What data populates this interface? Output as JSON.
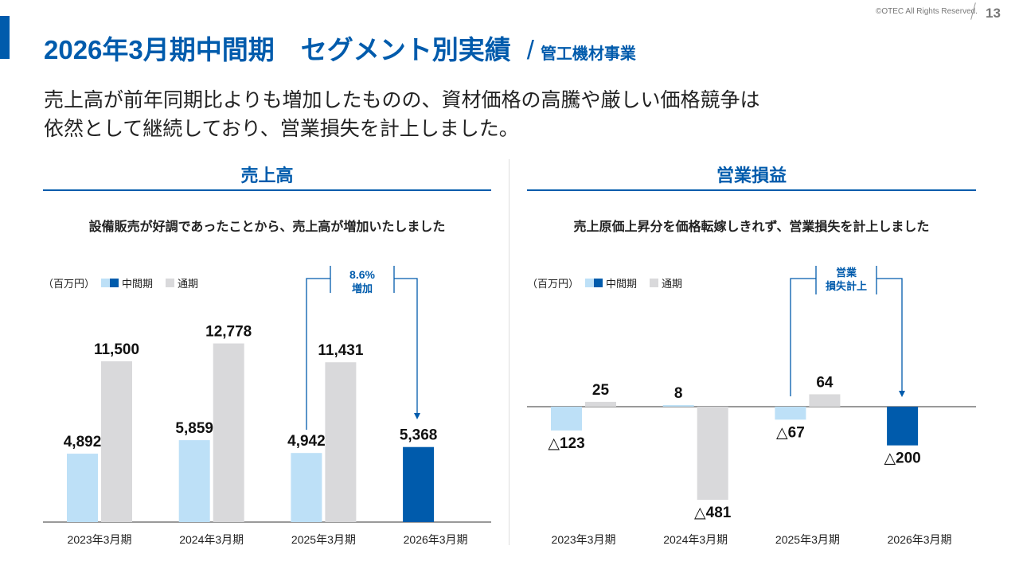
{
  "header": {
    "title": "2026年3月期中間期　セグメント別実績",
    "separator": "/",
    "subtitle": "管工機材事業",
    "copyright": "©OTEC All Rights Reserved.",
    "page_number": "13"
  },
  "lead": [
    "売上高が前年同期比よりも増加したものの、資材価格の高騰や厳しい価格競争は",
    "依然として継続しており、営業損失を計上しました。"
  ],
  "colors": {
    "accent": "#005bac",
    "interim": "#bde0f7",
    "interim_current": "#005bac",
    "full_year": "#d9d9db"
  },
  "legend": {
    "unit": "（百万円）",
    "interim": "中間期",
    "full_year": "通期"
  },
  "chart_data": [
    {
      "type": "bar",
      "title": "売上高",
      "description": "設備販売が好調であったことから、売上高が増加いたしました",
      "categories": [
        "2023年3月期",
        "2024年3月期",
        "2025年3月期",
        "2026年3月期"
      ],
      "series": [
        {
          "name": "中間期",
          "values": [
            4892,
            5859,
            4942,
            5368
          ],
          "labels": [
            "4,892",
            "5,859",
            "4,942",
            "5,368"
          ]
        },
        {
          "name": "通期",
          "values": [
            11500,
            12778,
            11431,
            null
          ],
          "labels": [
            "11,500",
            "12,778",
            "11,431",
            ""
          ]
        }
      ],
      "annotation": {
        "line1": "8.6%",
        "line2": "増加"
      }
    },
    {
      "type": "bar",
      "title": "営業損益",
      "description": "売上原価上昇分を価格転嫁しきれず、営業損失を計上しました",
      "categories": [
        "2023年3月期",
        "2024年3月期",
        "2025年3月期",
        "2026年3月期"
      ],
      "series": [
        {
          "name": "中間期",
          "values": [
            -123,
            8,
            -67,
            -200
          ],
          "labels": [
            "△123",
            "8",
            "△67",
            "△200"
          ]
        },
        {
          "name": "通期",
          "values": [
            25,
            -481,
            64,
            null
          ],
          "labels": [
            "25",
            "△481",
            "64",
            ""
          ]
        }
      ],
      "annotation": {
        "line1": "営業",
        "line2": "損失計上"
      }
    }
  ]
}
